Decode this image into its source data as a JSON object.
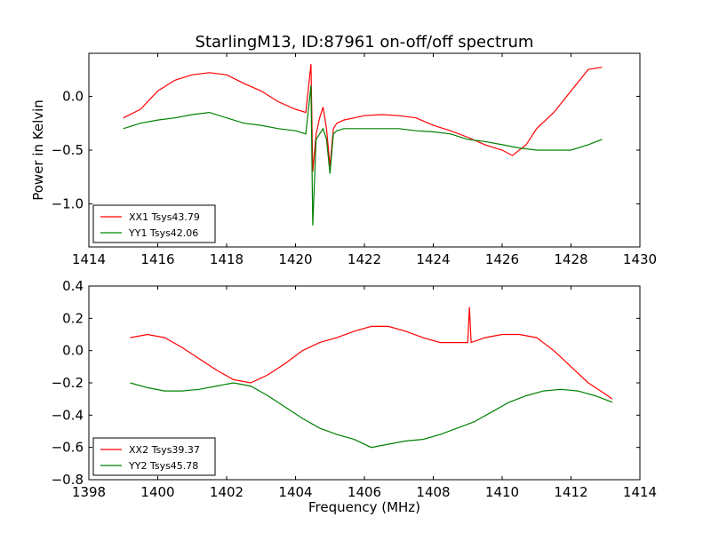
{
  "figure": {
    "title": "StarlingM13, ID:87961 on-off/off spectrum"
  },
  "chart_data": [
    {
      "type": "line",
      "title": "StarlingM13, ID:87961 on-off/off spectrum",
      "xlabel": "",
      "ylabel": "Power in Kelvin",
      "xlim": [
        1414,
        1430
      ],
      "ylim": [
        -1.4,
        0.4
      ],
      "xticks": [
        1414,
        1416,
        1418,
        1420,
        1422,
        1424,
        1426,
        1428,
        1430
      ],
      "xtick_labels": [
        "1414",
        "1416",
        "1418",
        "1420",
        "1422",
        "1424",
        "1426",
        "1428",
        "1430"
      ],
      "yticks": [
        -1.0,
        -0.5,
        0.0
      ],
      "ytick_labels": [
        "−1.0",
        "−0.5",
        "0.0"
      ],
      "grid": false,
      "legend_position": "lower-left",
      "series": [
        {
          "name": "XX1 Tsys43.79",
          "color": "#ff0000",
          "x": [
            1415.0,
            1415.5,
            1416.0,
            1416.5,
            1417.0,
            1417.5,
            1418.0,
            1418.5,
            1419.0,
            1419.5,
            1420.0,
            1420.3,
            1420.45,
            1420.5,
            1420.6,
            1420.7,
            1420.8,
            1420.9,
            1421.0,
            1421.1,
            1421.2,
            1421.4,
            1421.7,
            1422.0,
            1422.5,
            1423.0,
            1423.5,
            1424.0,
            1424.5,
            1425.0,
            1425.5,
            1426.0,
            1426.3,
            1426.7,
            1427.0,
            1427.5,
            1428.0,
            1428.5,
            1428.9
          ],
          "values": [
            -0.2,
            -0.12,
            0.05,
            0.15,
            0.2,
            0.22,
            0.2,
            0.12,
            0.05,
            -0.05,
            -0.12,
            -0.15,
            0.3,
            -0.7,
            -0.35,
            -0.2,
            -0.1,
            -0.3,
            -0.65,
            -0.3,
            -0.25,
            -0.22,
            -0.2,
            -0.18,
            -0.17,
            -0.18,
            -0.2,
            -0.27,
            -0.32,
            -0.38,
            -0.45,
            -0.5,
            -0.55,
            -0.45,
            -0.3,
            -0.15,
            0.05,
            0.25,
            0.27
          ]
        },
        {
          "name": "YY1 Tsys42.06",
          "color": "#008000",
          "x": [
            1415.0,
            1415.5,
            1416.0,
            1416.5,
            1417.0,
            1417.5,
            1418.0,
            1418.5,
            1419.0,
            1419.5,
            1420.0,
            1420.3,
            1420.45,
            1420.5,
            1420.6,
            1420.7,
            1420.8,
            1420.9,
            1421.0,
            1421.1,
            1421.2,
            1421.4,
            1421.7,
            1422.0,
            1422.5,
            1423.0,
            1423.5,
            1424.0,
            1424.5,
            1425.0,
            1425.5,
            1426.0,
            1426.5,
            1427.0,
            1427.5,
            1428.0,
            1428.5,
            1428.9
          ],
          "values": [
            -0.3,
            -0.25,
            -0.22,
            -0.2,
            -0.17,
            -0.15,
            -0.2,
            -0.25,
            -0.27,
            -0.3,
            -0.32,
            -0.35,
            0.1,
            -1.2,
            -0.4,
            -0.35,
            -0.3,
            -0.4,
            -0.72,
            -0.35,
            -0.32,
            -0.3,
            -0.3,
            -0.3,
            -0.3,
            -0.3,
            -0.32,
            -0.33,
            -0.35,
            -0.4,
            -0.42,
            -0.45,
            -0.48,
            -0.5,
            -0.5,
            -0.5,
            -0.45,
            -0.4
          ]
        }
      ]
    },
    {
      "type": "line",
      "title": "",
      "xlabel": "Frequency (MHz)",
      "ylabel": "",
      "xlim": [
        1398,
        1414
      ],
      "ylim": [
        -0.8,
        0.4
      ],
      "xticks": [
        1398,
        1400,
        1402,
        1404,
        1406,
        1408,
        1410,
        1412,
        1414
      ],
      "xtick_labels": [
        "1398",
        "1400",
        "1402",
        "1404",
        "1406",
        "1408",
        "1410",
        "1412",
        "1414"
      ],
      "yticks": [
        -0.8,
        -0.6,
        -0.4,
        -0.2,
        0.0,
        0.2,
        0.4
      ],
      "ytick_labels": [
        "−0.8",
        "−0.6",
        "−0.4",
        "−0.2",
        "0.0",
        "0.2",
        "0.4"
      ],
      "grid": false,
      "legend_position": "lower-left",
      "series": [
        {
          "name": "XX2 Tsys39.37",
          "color": "#ff0000",
          "x": [
            1399.2,
            1399.7,
            1400.2,
            1400.7,
            1401.2,
            1401.7,
            1402.2,
            1402.7,
            1403.2,
            1403.7,
            1404.2,
            1404.7,
            1405.2,
            1405.7,
            1406.2,
            1406.7,
            1407.2,
            1407.7,
            1408.2,
            1408.7,
            1409.0,
            1409.05,
            1409.1,
            1409.5,
            1410.0,
            1410.5,
            1411.0,
            1411.5,
            1412.0,
            1412.5,
            1413.0,
            1413.2
          ],
          "values": [
            0.08,
            0.1,
            0.08,
            0.02,
            -0.05,
            -0.12,
            -0.18,
            -0.2,
            -0.15,
            -0.08,
            0.0,
            0.05,
            0.08,
            0.12,
            0.15,
            0.15,
            0.12,
            0.08,
            0.05,
            0.05,
            0.05,
            0.27,
            0.05,
            0.08,
            0.1,
            0.1,
            0.08,
            0.0,
            -0.1,
            -0.2,
            -0.27,
            -0.3
          ]
        },
        {
          "name": "YY2 Tsys45.78",
          "color": "#008000",
          "x": [
            1399.2,
            1399.7,
            1400.2,
            1400.7,
            1401.2,
            1401.7,
            1402.2,
            1402.7,
            1403.2,
            1403.7,
            1404.2,
            1404.7,
            1405.2,
            1405.7,
            1406.2,
            1406.7,
            1407.2,
            1407.7,
            1408.2,
            1408.7,
            1409.2,
            1409.7,
            1410.2,
            1410.7,
            1411.2,
            1411.7,
            1412.2,
            1412.7,
            1413.2
          ],
          "values": [
            -0.2,
            -0.23,
            -0.25,
            -0.25,
            -0.24,
            -0.22,
            -0.2,
            -0.22,
            -0.28,
            -0.35,
            -0.42,
            -0.48,
            -0.52,
            -0.55,
            -0.6,
            -0.58,
            -0.56,
            -0.55,
            -0.52,
            -0.48,
            -0.44,
            -0.38,
            -0.32,
            -0.28,
            -0.25,
            -0.24,
            -0.25,
            -0.28,
            -0.32
          ]
        }
      ]
    }
  ]
}
